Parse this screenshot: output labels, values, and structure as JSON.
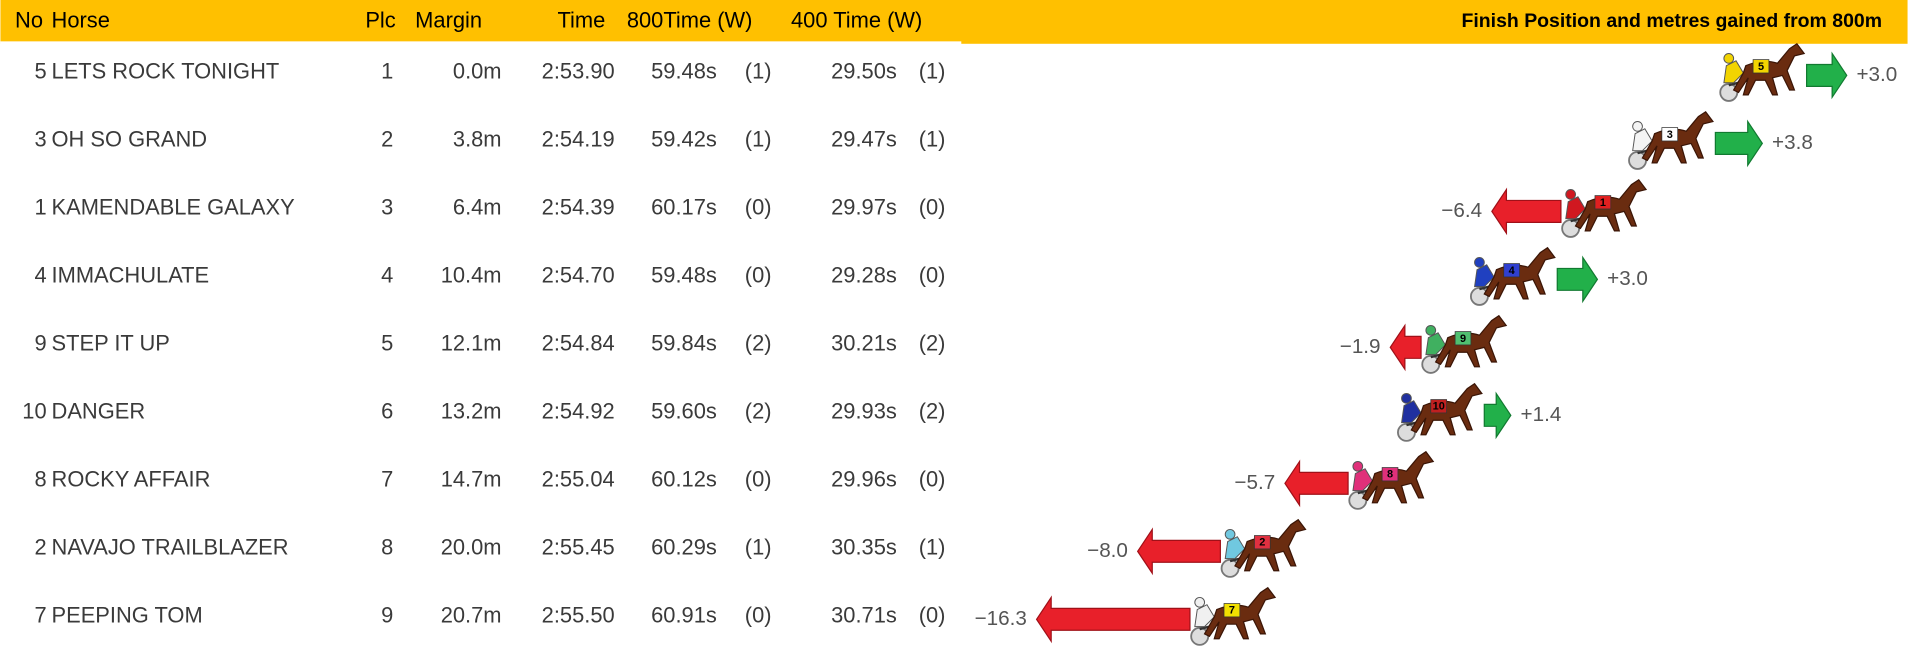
{
  "table": {
    "header": [
      "No",
      "Horse",
      "Plc",
      "Margin",
      "Time",
      "800Time (W)",
      "400 Time (W)"
    ],
    "rows": [
      [
        "5",
        "LETS ROCK TONIGHT",
        "1",
        "0.0m",
        "2:53.90",
        "59.48s",
        "(1)",
        "29.50s",
        "(1)"
      ],
      [
        "3",
        "OH SO GRAND",
        "2",
        "3.8m",
        "2:54.19",
        "59.42s",
        "(1)",
        "29.47s",
        "(1)"
      ],
      [
        "1",
        "KAMENDABLE GALAXY",
        "3",
        "6.4m",
        "2:54.39",
        "60.17s",
        "(0)",
        "29.97s",
        "(0)"
      ],
      [
        "4",
        "IMMACHULATE",
        "4",
        "10.4m",
        "2:54.70",
        "59.48s",
        "(0)",
        "29.28s",
        "(0)"
      ],
      [
        "9",
        "STEP IT UP",
        "5",
        "12.1m",
        "2:54.84",
        "59.84s",
        "(2)",
        "30.21s",
        "(2)"
      ],
      [
        "10",
        "DANGER",
        "6",
        "13.2m",
        "2:54.92",
        "59.60s",
        "(2)",
        "29.93s",
        "(2)"
      ],
      [
        "8",
        "ROCKY AFFAIR",
        "7",
        "14.7m",
        "2:55.04",
        "60.12s",
        "(0)",
        "29.96s",
        "(0)"
      ],
      [
        "2",
        "NAVAJO TRAILBLAZER",
        "8",
        "20.0m",
        "2:55.45",
        "60.29s",
        "(1)",
        "30.35s",
        "(1)"
      ],
      [
        "7",
        "PEEPING TOM",
        "9",
        "20.7m",
        "2:55.50",
        "60.91s",
        "(0)",
        "30.71s",
        "(0)"
      ]
    ]
  },
  "gains": {
    "title": "Finish Position and metres gained from 800m",
    "items": [
      {
        "value": 3.0,
        "label": "+3.0"
      },
      {
        "value": 3.8,
        "label": "+3.8"
      },
      {
        "value": -6.4,
        "label": "−6.4"
      },
      {
        "value": 3.0,
        "label": "+3.0"
      },
      {
        "value": -1.9,
        "label": "−1.9"
      },
      {
        "value": 1.4,
        "label": "+1.4"
      },
      {
        "value": -5.7,
        "label": "−5.7"
      },
      {
        "value": -8.0,
        "label": "−8.0"
      },
      {
        "value": -16.3,
        "label": "−16.3"
      }
    ]
  }
}
